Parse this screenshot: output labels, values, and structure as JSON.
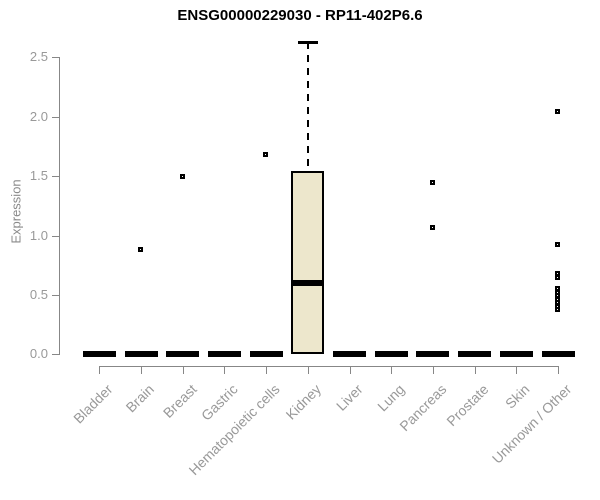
{
  "chart_data": {
    "type": "boxplot",
    "title": "ENSG00000229030 - RP11-402P6.6",
    "ylabel": "Expression",
    "xlabel": "",
    "ylim": [
      0.0,
      2.63
    ],
    "yticks": [
      0.0,
      0.5,
      1.0,
      1.5,
      2.0,
      2.5
    ],
    "ytick_labels": [
      "0.0",
      "0.5",
      "1.0",
      "1.5",
      "2.0",
      "2.5"
    ],
    "grid": false,
    "legend": null,
    "categories": [
      "Bladder",
      "Brain",
      "Breast",
      "Gastric",
      "Hematopoietic cells",
      "Kidney",
      "Liver",
      "Lung",
      "Pancreas",
      "Prostate",
      "Skin",
      "Unknown / Other"
    ],
    "series": [
      {
        "category": "Bladder",
        "q1": 0,
        "median": 0,
        "q3": 0,
        "whisker_low": 0,
        "whisker_high": 0,
        "outliers": []
      },
      {
        "category": "Brain",
        "q1": 0,
        "median": 0,
        "q3": 0,
        "whisker_low": 0,
        "whisker_high": 0,
        "outliers": [
          0.88
        ]
      },
      {
        "category": "Breast",
        "q1": 0,
        "median": 0,
        "q3": 0,
        "whisker_low": 0,
        "whisker_high": 0,
        "outliers": [
          1.49
        ]
      },
      {
        "category": "Gastric",
        "q1": 0,
        "median": 0,
        "q3": 0,
        "whisker_low": 0,
        "whisker_high": 0,
        "outliers": []
      },
      {
        "category": "Hematopoietic cells",
        "q1": 0,
        "median": 0,
        "q3": 0,
        "whisker_low": 0,
        "whisker_high": 0,
        "outliers": [
          1.68
        ]
      },
      {
        "category": "Kidney",
        "q1": 0,
        "median": 0.6,
        "q3": 1.54,
        "whisker_low": 0,
        "whisker_high": 2.63,
        "outliers": []
      },
      {
        "category": "Liver",
        "q1": 0,
        "median": 0,
        "q3": 0,
        "whisker_low": 0,
        "whisker_high": 0,
        "outliers": []
      },
      {
        "category": "Lung",
        "q1": 0,
        "median": 0,
        "q3": 0,
        "whisker_low": 0,
        "whisker_high": 0,
        "outliers": []
      },
      {
        "category": "Pancreas",
        "q1": 0,
        "median": 0,
        "q3": 0,
        "whisker_low": 0,
        "whisker_high": 0,
        "outliers": [
          1.44,
          1.06
        ]
      },
      {
        "category": "Prostate",
        "q1": 0,
        "median": 0,
        "q3": 0,
        "whisker_low": 0,
        "whisker_high": 0,
        "outliers": []
      },
      {
        "category": "Skin",
        "q1": 0,
        "median": 0,
        "q3": 0,
        "whisker_low": 0,
        "whisker_high": 0,
        "outliers": []
      },
      {
        "category": "Unknown / Other",
        "q1": 0,
        "median": 0,
        "q3": 0,
        "whisker_low": 0,
        "whisker_high": 0,
        "outliers": [
          2.04,
          0.92,
          0.68,
          0.64,
          0.55,
          0.52,
          0.49,
          0.46,
          0.43,
          0.4,
          0.37
        ]
      }
    ],
    "colors": {
      "box_fill": "#EDE7CC",
      "box_border": "#000000",
      "median": "#000000",
      "whisker": "#000000",
      "outlier": "#000000",
      "axis": "#878787",
      "tick_label": "#999999",
      "category_label": "#999999",
      "title": "#000000",
      "background": "#FFFFFF"
    }
  }
}
